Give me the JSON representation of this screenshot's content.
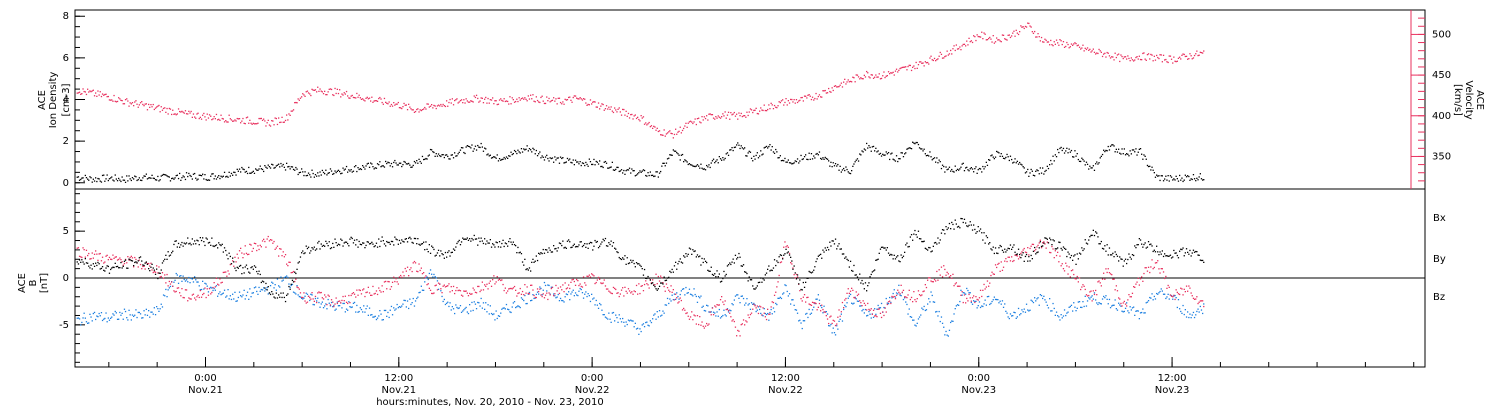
{
  "figure": {
    "xlabel": "hours:minutes, Nov. 20, 2010 - Nov. 23, 2010",
    "x_ticks": [
      {
        "time": "0:00",
        "date": "Nov.21",
        "hours": 24
      },
      {
        "time": "12:00",
        "date": "Nov.21",
        "hours": 36
      },
      {
        "time": "0:00",
        "date": "Nov.22",
        "hours": 48
      },
      {
        "time": "12:00",
        "date": "Nov.22",
        "hours": 60
      },
      {
        "time": "0:00",
        "date": "Nov.23",
        "hours": 72
      },
      {
        "time": "12:00",
        "date": "Nov.23",
        "hours": 84
      }
    ],
    "x_range_hours": [
      15.9,
      99.7
    ]
  },
  "colors": {
    "density": "#000000",
    "velocity": "#e8305e",
    "bx": "#000000",
    "by": "#1a7ee0",
    "bz": "#e8305e"
  },
  "chart_data": [
    {
      "type": "scatter",
      "ylabel_lines": [
        "ACE",
        "Ion Density",
        "[cm-3]"
      ],
      "y2label_lines": [
        "ACE",
        "Velocity",
        "[km/s]"
      ],
      "ylim": [
        -0.3,
        8.3
      ],
      "y_ticks": [
        0,
        2,
        4,
        6,
        8
      ],
      "y2lim": [
        310,
        530
      ],
      "y2_ticks": [
        350,
        400,
        450,
        500
      ],
      "series": [
        {
          "color_key": "density",
          "x": [
            16,
            17,
            18,
            19,
            20,
            21,
            22,
            23,
            24,
            25,
            26,
            27,
            28,
            29,
            30,
            31,
            32,
            33,
            34,
            35,
            36,
            37,
            38,
            39,
            40,
            41,
            42,
            43,
            44,
            45,
            46,
            47,
            48,
            49,
            50,
            51,
            52,
            53,
            54,
            55,
            56,
            57,
            58,
            59,
            60,
            61,
            62,
            63,
            64,
            65,
            66,
            67,
            68,
            69,
            70,
            71,
            72,
            73,
            74,
            75,
            76,
            77,
            78,
            79,
            80,
            81,
            82,
            83,
            84,
            85,
            86
          ],
          "values": [
            0.3,
            0.2,
            0.25,
            0.2,
            0.3,
            0.25,
            0.3,
            0.35,
            0.3,
            0.4,
            0.6,
            0.65,
            0.75,
            0.8,
            0.5,
            0.45,
            0.6,
            0.7,
            0.8,
            0.9,
            0.95,
            0.9,
            1.5,
            1.3,
            1.6,
            1.8,
            1.2,
            1.4,
            1.7,
            1.3,
            1.1,
            1.0,
            1.0,
            0.9,
            0.6,
            0.5,
            0.4,
            1.5,
            1.0,
            0.8,
            1.2,
            1.8,
            1.2,
            1.8,
            1.0,
            1.2,
            1.4,
            0.8,
            0.6,
            1.8,
            1.4,
            1.2,
            2.0,
            1.3,
            0.6,
            0.8,
            0.6,
            1.4,
            1.2,
            0.5,
            0.6,
            1.6,
            1.4,
            0.6,
            1.8,
            1.5,
            1.5,
            0.3,
            0.2,
            0.3,
            0.3
          ]
        },
        {
          "color_key": "velocity",
          "axis": "right",
          "x": [
            16,
            17,
            18,
            19,
            20,
            21,
            22,
            23,
            24,
            25,
            26,
            27,
            28,
            29,
            30,
            31,
            32,
            33,
            34,
            35,
            36,
            37,
            38,
            39,
            40,
            41,
            42,
            43,
            44,
            45,
            46,
            47,
            48,
            49,
            50,
            51,
            52,
            53,
            54,
            55,
            56,
            57,
            58,
            59,
            60,
            61,
            62,
            63,
            64,
            65,
            66,
            67,
            68,
            69,
            70,
            71,
            72,
            73,
            74,
            75,
            76,
            77,
            78,
            79,
            80,
            81,
            82,
            83,
            84,
            85,
            86
          ],
          "values": [
            432,
            428,
            424,
            418,
            414,
            410,
            406,
            402,
            400,
            398,
            396,
            394,
            392,
            398,
            428,
            432,
            430,
            426,
            422,
            418,
            414,
            408,
            412,
            416,
            420,
            422,
            418,
            420,
            424,
            420,
            418,
            422,
            416,
            410,
            404,
            398,
            382,
            378,
            390,
            398,
            402,
            400,
            406,
            412,
            418,
            420,
            426,
            436,
            444,
            452,
            450,
            456,
            462,
            470,
            478,
            488,
            500,
            494,
            500,
            512,
            492,
            490,
            486,
            480,
            476,
            470,
            474,
            472,
            470,
            474,
            478
          ]
        }
      ]
    },
    {
      "type": "scatter",
      "ylabel_lines": [
        "ACE",
        "B",
        "[nT]"
      ],
      "ylim": [
        -9.5,
        9.5
      ],
      "y_ticks": [
        -5,
        0,
        5
      ],
      "zero_line": true,
      "legend": [
        "Bx",
        "By",
        "Bz"
      ],
      "legend_position": "right",
      "series": [
        {
          "name": "Bx",
          "color_key": "bx",
          "x": [
            16,
            17,
            18,
            19,
            20,
            21,
            22,
            23,
            24,
            25,
            26,
            27,
            28,
            29,
            30,
            31,
            32,
            33,
            34,
            35,
            36,
            37,
            38,
            39,
            40,
            41,
            42,
            43,
            44,
            45,
            46,
            47,
            48,
            49,
            50,
            51,
            52,
            53,
            54,
            55,
            56,
            57,
            58,
            59,
            60,
            61,
            62,
            63,
            64,
            65,
            66,
            67,
            68,
            69,
            70,
            71,
            72,
            73,
            74,
            75,
            76,
            77,
            78,
            79,
            80,
            81,
            82,
            83,
            84,
            85,
            86
          ],
          "values": [
            2,
            1.5,
            1,
            1.5,
            2,
            0.5,
            3.5,
            4,
            4,
            3.5,
            1,
            1,
            -1.5,
            -2,
            3,
            3.5,
            3.8,
            4,
            3.5,
            4,
            4,
            4.2,
            3,
            2.5,
            4.5,
            4,
            3.5,
            4,
            1,
            3,
            3.5,
            3.8,
            3.5,
            4,
            2,
            1,
            -1,
            1,
            3,
            1.5,
            0,
            2.5,
            -1,
            1,
            3,
            -1,
            2,
            4,
            1.5,
            -1,
            3.5,
            2,
            5,
            3,
            5.5,
            6,
            5,
            3,
            3.5,
            2,
            4,
            3.5,
            2,
            5,
            3,
            1.5,
            4,
            3,
            2.5,
            3,
            2
          ]
        },
        {
          "name": "By",
          "color_key": "by",
          "x": [
            16,
            17,
            18,
            19,
            20,
            21,
            22,
            23,
            24,
            25,
            26,
            27,
            28,
            29,
            30,
            31,
            32,
            33,
            34,
            35,
            36,
            37,
            38,
            39,
            40,
            41,
            42,
            43,
            44,
            45,
            46,
            47,
            48,
            49,
            50,
            51,
            52,
            53,
            54,
            55,
            56,
            57,
            58,
            59,
            60,
            61,
            62,
            63,
            64,
            65,
            66,
            67,
            68,
            69,
            70,
            71,
            72,
            73,
            74,
            75,
            76,
            77,
            78,
            79,
            80,
            81,
            82,
            83,
            84,
            85,
            86
          ],
          "values": [
            -4.5,
            -4,
            -4.2,
            -3.8,
            -4,
            -3.5,
            0,
            0,
            -1,
            -1.5,
            -2,
            -1.5,
            -1,
            0,
            -2,
            -2.5,
            -3,
            -3,
            -3.5,
            -4,
            -3,
            -2.5,
            1,
            -3,
            -3.5,
            -2.5,
            -4,
            -3,
            -2,
            -1,
            -2,
            -1.5,
            -2,
            -4,
            -4.5,
            -5.5,
            -4,
            -2,
            -1,
            -3,
            -4,
            -2,
            -3,
            -4,
            -1,
            -5,
            -2,
            -6,
            -2,
            -4,
            -3,
            -1,
            -5,
            -2,
            -6,
            -1,
            -3,
            -2,
            -4,
            -3,
            -2,
            -4,
            -3,
            -2,
            -2.5,
            -3,
            -4,
            -1.5,
            -2,
            -4,
            -3
          ]
        },
        {
          "name": "Bz",
          "color_key": "bz",
          "x": [
            16,
            17,
            18,
            19,
            20,
            21,
            22,
            23,
            24,
            25,
            26,
            27,
            28,
            29,
            30,
            31,
            32,
            33,
            34,
            35,
            36,
            37,
            38,
            39,
            40,
            41,
            42,
            43,
            44,
            45,
            46,
            47,
            48,
            49,
            50,
            51,
            52,
            53,
            54,
            55,
            56,
            57,
            58,
            59,
            60,
            61,
            62,
            63,
            64,
            65,
            66,
            67,
            68,
            69,
            70,
            71,
            72,
            73,
            74,
            75,
            76,
            77,
            78,
            79,
            80,
            81,
            82,
            83,
            84,
            85,
            86
          ],
          "values": [
            3,
            2.5,
            2,
            2,
            1.5,
            1,
            -1,
            -2,
            -1.5,
            0,
            2.5,
            3.5,
            4,
            2,
            -2,
            -2,
            -2.5,
            -2,
            -1.5,
            -1,
            0,
            1.5,
            -1,
            -1,
            -1.5,
            -1,
            0,
            -1.5,
            -1,
            -2,
            -1,
            -0.5,
            0,
            -1,
            -1.5,
            -1,
            0,
            -1.5,
            -4,
            -5,
            -2,
            -6,
            -3,
            -4,
            4,
            -2,
            -3,
            -5,
            -1,
            -3,
            -4,
            -1,
            -2,
            0,
            1,
            -2,
            -2,
            1,
            2,
            3,
            4,
            2,
            0,
            -2,
            1,
            -3,
            0,
            2,
            -2,
            -1,
            -3
          ]
        }
      ]
    }
  ]
}
